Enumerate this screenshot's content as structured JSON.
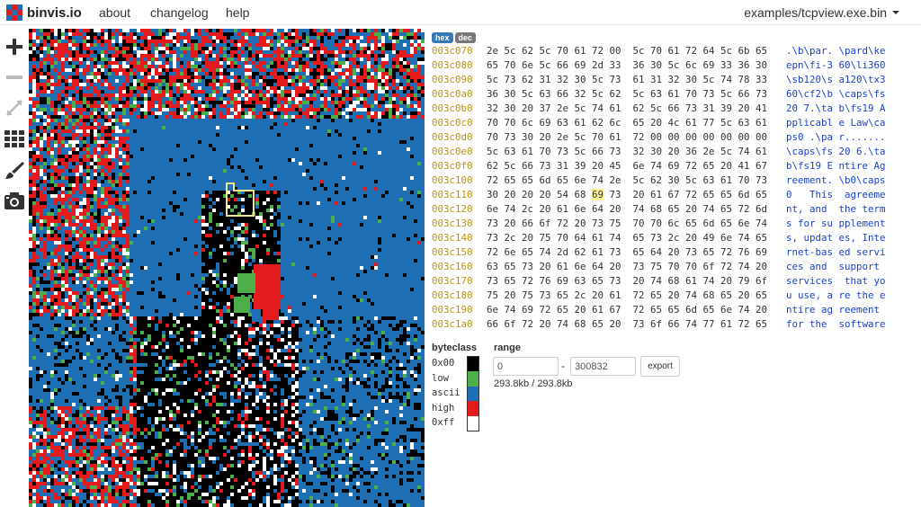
{
  "app": {
    "name": "binvis.io"
  },
  "nav": {
    "links": [
      "about",
      "changelog",
      "help"
    ],
    "file": "examples/tcpview.exe.bin"
  },
  "tools": [
    "plus-icon",
    "minus-icon",
    "expand-icon",
    "grid-icon",
    "brush-icon",
    "camera-icon"
  ],
  "modes": {
    "hex": "hex",
    "dec": "dec"
  },
  "hex_rows": [
    {
      "off": "003c070",
      "bytes": "2e 5c 62 5c 70 61 72 00  5c 70 61 72 64 5c 6b 65",
      "ascii": ".\\b\\par. \\pard\\ke"
    },
    {
      "off": "003c080",
      "bytes": "65 70 6e 5c 66 69 2d 33  36 30 5c 6c 69 33 36 30",
      "ascii": "epn\\fi-3 60\\li360"
    },
    {
      "off": "003c090",
      "bytes": "5c 73 62 31 32 30 5c 73  61 31 32 30 5c 74 78 33",
      "ascii": "\\sb120\\s a120\\tx3"
    },
    {
      "off": "003c0a0",
      "bytes": "36 30 5c 63 66 32 5c 62  5c 63 61 70 73 5c 66 73",
      "ascii": "60\\cf2\\b \\caps\\fs"
    },
    {
      "off": "003c0b0",
      "bytes": "32 30 20 37 2e 5c 74 61  62 5c 66 73 31 39 20 41",
      "ascii": "20 7.\\ta b\\fs19 A"
    },
    {
      "off": "003c0c0",
      "bytes": "70 70 6c 69 63 61 62 6c  65 20 4c 61 77 5c 63 61",
      "ascii": "pplicabl e Law\\ca"
    },
    {
      "off": "003c0d0",
      "bytes": "70 73 30 20 2e 5c 70 61  72 00 00 00 00 00 00 00",
      "ascii": "ps0 .\\pa r......."
    },
    {
      "off": "003c0e0",
      "bytes": "5c 63 61 70 73 5c 66 73  32 30 20 36 2e 5c 74 61",
      "ascii": "\\caps\\fs 20 6.\\ta"
    },
    {
      "off": "003c0f0",
      "bytes": "62 5c 66 73 31 39 20 45  6e 74 69 72 65 20 41 67",
      "ascii": "b\\fs19 E ntire Ag"
    },
    {
      "off": "003c100",
      "bytes": "72 65 65 6d 65 6e 74 2e  5c 62 30 5c 63 61 70 73",
      "ascii": "reement. \\b0\\caps"
    },
    {
      "off": "003c110",
      "bytes": "30 20 20 20 54 68 69 73  20 61 67 72 65 65 6d 65",
      "ascii": "0   This  agreeme",
      "hl": "69"
    },
    {
      "off": "003c120",
      "bytes": "6e 74 2c 20 61 6e 64 20  74 68 65 20 74 65 72 6d",
      "ascii": "nt, and  the term"
    },
    {
      "off": "003c130",
      "bytes": "73 20 66 6f 72 20 73 75  70 70 6c 65 6d 65 6e 74",
      "ascii": "s for su pplement"
    },
    {
      "off": "003c140",
      "bytes": "73 2c 20 75 70 64 61 74  65 73 2c 20 49 6e 74 65",
      "ascii": "s, updat es, Inte"
    },
    {
      "off": "003c150",
      "bytes": "72 6e 65 74 2d 62 61 73  65 64 20 73 65 72 76 69",
      "ascii": "rnet-bas ed servi"
    },
    {
      "off": "003c160",
      "bytes": "63 65 73 20 61 6e 64 20  73 75 70 70 6f 72 74 20",
      "ascii": "ces and  support "
    },
    {
      "off": "003c170",
      "bytes": "73 65 72 76 69 63 65 73  20 74 68 61 74 20 79 6f",
      "ascii": "services  that yo"
    },
    {
      "off": "003c180",
      "bytes": "75 20 75 73 65 2c 20 61  72 65 20 74 68 65 20 65",
      "ascii": "u use, a re the e"
    },
    {
      "off": "003c190",
      "bytes": "6e 74 69 72 65 20 61 67  72 65 65 6d 65 6e 74 20",
      "ascii": "ntire ag reement "
    },
    {
      "off": "003c1a0",
      "bytes": "66 6f 72 20 74 68 65 20  73 6f 66 74 77 61 72 65",
      "ascii": "for the  software"
    }
  ],
  "byteclass": {
    "title": "byteclass",
    "items": [
      {
        "label": "0x00",
        "color": "#000000"
      },
      {
        "label": "low",
        "color": "#4daf4a"
      },
      {
        "label": "ascii",
        "color": "#1f6fb4"
      },
      {
        "label": "high",
        "color": "#e41a1c"
      },
      {
        "label": "0xff",
        "color": "#ffffff"
      }
    ]
  },
  "range": {
    "title": "range",
    "start": "0",
    "end": "300832",
    "export_label": "export",
    "size": "293.8kb / 293.8kb"
  },
  "colors": {
    "accent": "#337ab7",
    "offset": "#b8960c",
    "ascii_text": "#1a3fd1",
    "highlight": "#fff59a",
    "selection": "#f0e68c"
  }
}
